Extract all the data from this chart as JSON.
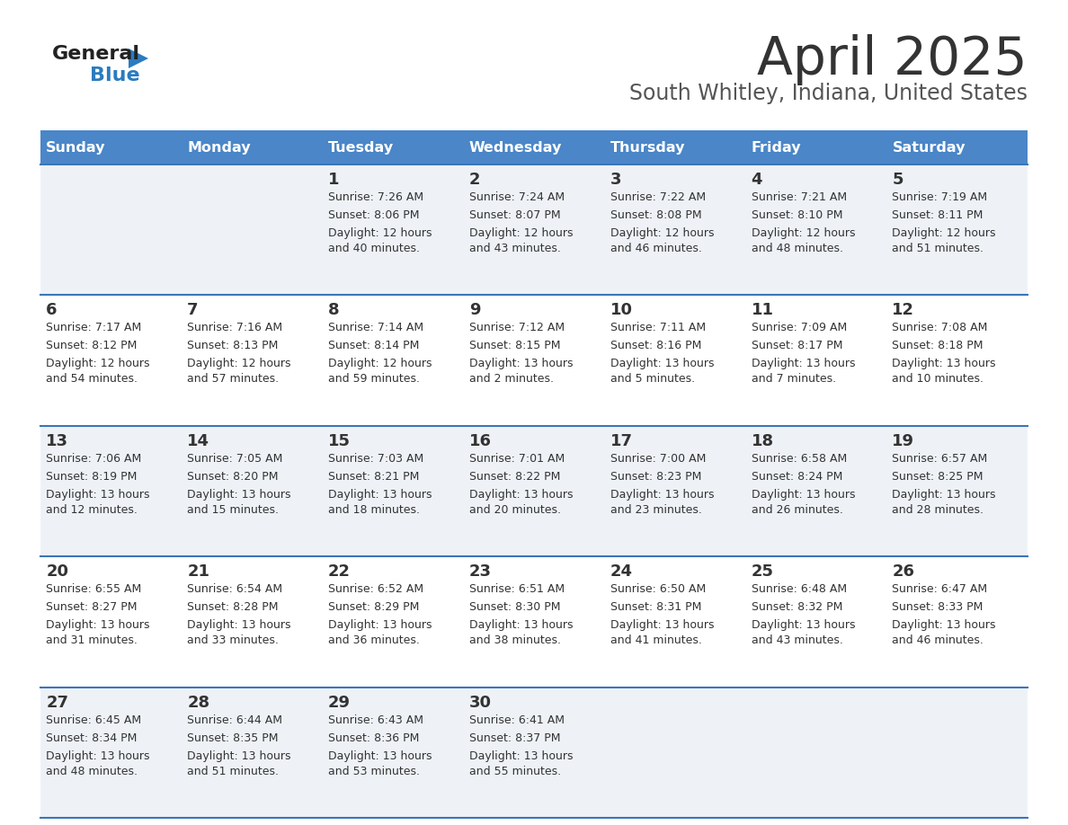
{
  "title": "April 2025",
  "subtitle": "South Whitley, Indiana, United States",
  "days_of_week": [
    "Sunday",
    "Monday",
    "Tuesday",
    "Wednesday",
    "Thursday",
    "Friday",
    "Saturday"
  ],
  "header_bg": "#4a86c8",
  "header_text": "#ffffff",
  "row_bg_even": "#eef2f7",
  "row_bg_odd": "#ffffff",
  "separator_color": "#3a76b8",
  "text_color": "#333333",
  "title_color": "#333333",
  "subtitle_color": "#555555",
  "logo_general_color": "#222222",
  "logo_blue_color": "#2b7bbf",
  "calendar": [
    [
      {
        "day": "",
        "sunrise": "",
        "sunset": "",
        "daylight1": "",
        "daylight2": ""
      },
      {
        "day": "",
        "sunrise": "",
        "sunset": "",
        "daylight1": "",
        "daylight2": ""
      },
      {
        "day": "1",
        "sunrise": "Sunrise: 7:26 AM",
        "sunset": "Sunset: 8:06 PM",
        "daylight1": "Daylight: 12 hours",
        "daylight2": "and 40 minutes."
      },
      {
        "day": "2",
        "sunrise": "Sunrise: 7:24 AM",
        "sunset": "Sunset: 8:07 PM",
        "daylight1": "Daylight: 12 hours",
        "daylight2": "and 43 minutes."
      },
      {
        "day": "3",
        "sunrise": "Sunrise: 7:22 AM",
        "sunset": "Sunset: 8:08 PM",
        "daylight1": "Daylight: 12 hours",
        "daylight2": "and 46 minutes."
      },
      {
        "day": "4",
        "sunrise": "Sunrise: 7:21 AM",
        "sunset": "Sunset: 8:10 PM",
        "daylight1": "Daylight: 12 hours",
        "daylight2": "and 48 minutes."
      },
      {
        "day": "5",
        "sunrise": "Sunrise: 7:19 AM",
        "sunset": "Sunset: 8:11 PM",
        "daylight1": "Daylight: 12 hours",
        "daylight2": "and 51 minutes."
      }
    ],
    [
      {
        "day": "6",
        "sunrise": "Sunrise: 7:17 AM",
        "sunset": "Sunset: 8:12 PM",
        "daylight1": "Daylight: 12 hours",
        "daylight2": "and 54 minutes."
      },
      {
        "day": "7",
        "sunrise": "Sunrise: 7:16 AM",
        "sunset": "Sunset: 8:13 PM",
        "daylight1": "Daylight: 12 hours",
        "daylight2": "and 57 minutes."
      },
      {
        "day": "8",
        "sunrise": "Sunrise: 7:14 AM",
        "sunset": "Sunset: 8:14 PM",
        "daylight1": "Daylight: 12 hours",
        "daylight2": "and 59 minutes."
      },
      {
        "day": "9",
        "sunrise": "Sunrise: 7:12 AM",
        "sunset": "Sunset: 8:15 PM",
        "daylight1": "Daylight: 13 hours",
        "daylight2": "and 2 minutes."
      },
      {
        "day": "10",
        "sunrise": "Sunrise: 7:11 AM",
        "sunset": "Sunset: 8:16 PM",
        "daylight1": "Daylight: 13 hours",
        "daylight2": "and 5 minutes."
      },
      {
        "day": "11",
        "sunrise": "Sunrise: 7:09 AM",
        "sunset": "Sunset: 8:17 PM",
        "daylight1": "Daylight: 13 hours",
        "daylight2": "and 7 minutes."
      },
      {
        "day": "12",
        "sunrise": "Sunrise: 7:08 AM",
        "sunset": "Sunset: 8:18 PM",
        "daylight1": "Daylight: 13 hours",
        "daylight2": "and 10 minutes."
      }
    ],
    [
      {
        "day": "13",
        "sunrise": "Sunrise: 7:06 AM",
        "sunset": "Sunset: 8:19 PM",
        "daylight1": "Daylight: 13 hours",
        "daylight2": "and 12 minutes."
      },
      {
        "day": "14",
        "sunrise": "Sunrise: 7:05 AM",
        "sunset": "Sunset: 8:20 PM",
        "daylight1": "Daylight: 13 hours",
        "daylight2": "and 15 minutes."
      },
      {
        "day": "15",
        "sunrise": "Sunrise: 7:03 AM",
        "sunset": "Sunset: 8:21 PM",
        "daylight1": "Daylight: 13 hours",
        "daylight2": "and 18 minutes."
      },
      {
        "day": "16",
        "sunrise": "Sunrise: 7:01 AM",
        "sunset": "Sunset: 8:22 PM",
        "daylight1": "Daylight: 13 hours",
        "daylight2": "and 20 minutes."
      },
      {
        "day": "17",
        "sunrise": "Sunrise: 7:00 AM",
        "sunset": "Sunset: 8:23 PM",
        "daylight1": "Daylight: 13 hours",
        "daylight2": "and 23 minutes."
      },
      {
        "day": "18",
        "sunrise": "Sunrise: 6:58 AM",
        "sunset": "Sunset: 8:24 PM",
        "daylight1": "Daylight: 13 hours",
        "daylight2": "and 26 minutes."
      },
      {
        "day": "19",
        "sunrise": "Sunrise: 6:57 AM",
        "sunset": "Sunset: 8:25 PM",
        "daylight1": "Daylight: 13 hours",
        "daylight2": "and 28 minutes."
      }
    ],
    [
      {
        "day": "20",
        "sunrise": "Sunrise: 6:55 AM",
        "sunset": "Sunset: 8:27 PM",
        "daylight1": "Daylight: 13 hours",
        "daylight2": "and 31 minutes."
      },
      {
        "day": "21",
        "sunrise": "Sunrise: 6:54 AM",
        "sunset": "Sunset: 8:28 PM",
        "daylight1": "Daylight: 13 hours",
        "daylight2": "and 33 minutes."
      },
      {
        "day": "22",
        "sunrise": "Sunrise: 6:52 AM",
        "sunset": "Sunset: 8:29 PM",
        "daylight1": "Daylight: 13 hours",
        "daylight2": "and 36 minutes."
      },
      {
        "day": "23",
        "sunrise": "Sunrise: 6:51 AM",
        "sunset": "Sunset: 8:30 PM",
        "daylight1": "Daylight: 13 hours",
        "daylight2": "and 38 minutes."
      },
      {
        "day": "24",
        "sunrise": "Sunrise: 6:50 AM",
        "sunset": "Sunset: 8:31 PM",
        "daylight1": "Daylight: 13 hours",
        "daylight2": "and 41 minutes."
      },
      {
        "day": "25",
        "sunrise": "Sunrise: 6:48 AM",
        "sunset": "Sunset: 8:32 PM",
        "daylight1": "Daylight: 13 hours",
        "daylight2": "and 43 minutes."
      },
      {
        "day": "26",
        "sunrise": "Sunrise: 6:47 AM",
        "sunset": "Sunset: 8:33 PM",
        "daylight1": "Daylight: 13 hours",
        "daylight2": "and 46 minutes."
      }
    ],
    [
      {
        "day": "27",
        "sunrise": "Sunrise: 6:45 AM",
        "sunset": "Sunset: 8:34 PM",
        "daylight1": "Daylight: 13 hours",
        "daylight2": "and 48 minutes."
      },
      {
        "day": "28",
        "sunrise": "Sunrise: 6:44 AM",
        "sunset": "Sunset: 8:35 PM",
        "daylight1": "Daylight: 13 hours",
        "daylight2": "and 51 minutes."
      },
      {
        "day": "29",
        "sunrise": "Sunrise: 6:43 AM",
        "sunset": "Sunset: 8:36 PM",
        "daylight1": "Daylight: 13 hours",
        "daylight2": "and 53 minutes."
      },
      {
        "day": "30",
        "sunrise": "Sunrise: 6:41 AM",
        "sunset": "Sunset: 8:37 PM",
        "daylight1": "Daylight: 13 hours",
        "daylight2": "and 55 minutes."
      },
      {
        "day": "",
        "sunrise": "",
        "sunset": "",
        "daylight1": "",
        "daylight2": ""
      },
      {
        "day": "",
        "sunrise": "",
        "sunset": "",
        "daylight1": "",
        "daylight2": ""
      },
      {
        "day": "",
        "sunrise": "",
        "sunset": "",
        "daylight1": "",
        "daylight2": ""
      }
    ]
  ]
}
